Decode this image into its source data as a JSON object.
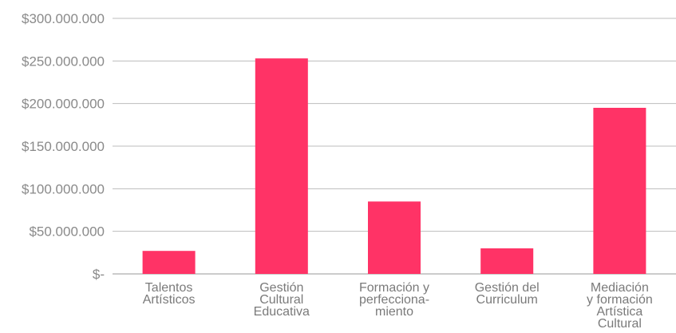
{
  "chart_data": {
    "type": "bar",
    "title": "",
    "xlabel": "",
    "ylabel": "",
    "categories": [
      [
        "Talentos",
        "Artísticos"
      ],
      [
        "Gestión",
        "Cultural",
        "Educativa"
      ],
      [
        "Formación y",
        "perfecciona-",
        "miento"
      ],
      [
        "Gestión del",
        "Curriculum"
      ],
      [
        "Mediación",
        "y formación",
        "Artística",
        "Cultural"
      ]
    ],
    "values": [
      27000000,
      253000000,
      85000000,
      30000000,
      195000000
    ],
    "ylim": [
      0,
      300000000
    ],
    "yticks": [
      {
        "value": 0,
        "label": "$-"
      },
      {
        "value": 50000000,
        "label": "$50.000.000"
      },
      {
        "value": 100000000,
        "label": "$100.000.000"
      },
      {
        "value": 150000000,
        "label": "$150.000.000"
      },
      {
        "value": 200000000,
        "label": "$200.000.000"
      },
      {
        "value": 250000000,
        "label": "$250.000.000"
      },
      {
        "value": 300000000,
        "label": "$300.000.000"
      }
    ],
    "grid": true,
    "legend": "none",
    "colors": {
      "bar": "#ff3366",
      "grid": "#bdbdbd",
      "axis": "#9a9a9a"
    }
  }
}
